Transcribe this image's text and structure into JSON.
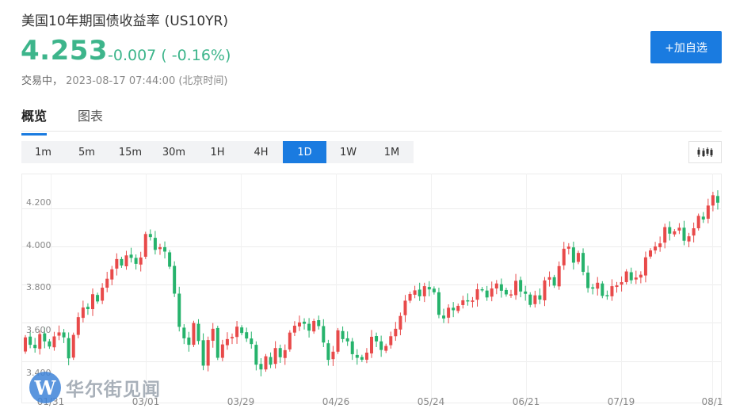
{
  "header": {
    "title": "美国10年期国债收益率",
    "symbol": "(US10YR)",
    "price": "4.253",
    "change": "-0.007 ( -0.16%)",
    "status_label": "交易中，",
    "timestamp": "2023-08-17 07:44:00 (北京时间)",
    "add_button": "+加自选"
  },
  "tabs": [
    {
      "label": "概览",
      "active": true
    },
    {
      "label": "图表",
      "active": false
    }
  ],
  "periods": [
    "1m",
    "5m",
    "15m",
    "30m",
    "1H",
    "4H",
    "1D",
    "1W",
    "1M"
  ],
  "active_period": "1D",
  "chart_type_icon": "candlestick-icon",
  "watermark": {
    "logo": "W",
    "text": "华尔街见闻"
  },
  "colors": {
    "up": "#e84a4a",
    "down": "#26b36c",
    "accent": "#1a7be0",
    "price": "#3db58b"
  },
  "chart_data": {
    "type": "candlestick",
    "y_ticks": [
      "4.200",
      "4.000",
      "3.800",
      "3.600",
      "3.400"
    ],
    "y_tick_values": [
      4.2,
      4.0,
      3.8,
      3.6,
      3.4
    ],
    "x_ticks": [
      "01/31",
      "03/01",
      "03/29",
      "04/26",
      "05/24",
      "06/21",
      "07/19",
      "08/1"
    ],
    "ylim": [
      3.22,
      4.34
    ],
    "grid": true,
    "open": [
      3.45,
      3.528,
      3.485,
      3.464,
      3.545,
      3.503,
      3.472,
      3.533,
      3.55,
      3.52,
      3.418,
      3.537,
      3.626,
      3.684,
      3.672,
      3.746,
      3.716,
      3.784,
      3.827,
      3.884,
      3.934,
      3.896,
      3.957,
      3.94,
      3.905,
      3.946,
      4.065,
      4.045,
      3.986,
      3.996,
      3.969,
      3.898,
      3.753,
      3.575,
      3.523,
      3.485,
      3.595,
      3.509,
      3.376,
      3.506,
      3.573,
      3.417,
      3.483,
      3.519,
      3.526,
      3.576,
      3.551,
      3.518,
      3.485,
      3.385,
      3.356,
      3.421,
      3.385,
      3.468,
      3.416,
      3.461,
      3.549,
      3.581,
      3.606,
      3.595,
      3.555,
      3.614,
      3.583,
      3.493,
      3.41,
      3.449,
      3.557,
      3.519,
      3.503,
      3.432,
      3.421,
      3.407,
      3.44,
      3.531,
      3.503,
      3.454,
      3.483,
      3.53,
      3.565,
      3.64,
      3.716,
      3.747,
      3.774,
      3.739,
      3.788,
      3.779,
      3.76,
      3.638,
      3.627,
      3.679,
      3.662,
      3.693,
      3.718,
      3.71,
      3.721,
      3.776,
      3.769,
      3.737,
      3.78,
      3.802,
      3.772,
      3.749,
      3.745,
      3.824,
      3.764,
      3.748,
      3.698,
      3.744,
      3.718,
      3.826,
      3.839,
      3.791,
      3.901,
      3.988,
      3.995,
      3.919,
      3.966,
      3.863,
      3.786,
      3.779,
      3.806,
      3.745,
      3.739,
      3.788,
      3.8,
      3.813,
      3.865,
      3.827,
      3.837,
      3.848,
      3.947,
      3.979,
      3.996,
      4.02,
      4.101,
      4.063,
      4.083,
      4.098,
      4.026,
      4.057,
      4.095,
      4.156,
      4.145,
      4.214,
      4.264
    ]
  }
}
